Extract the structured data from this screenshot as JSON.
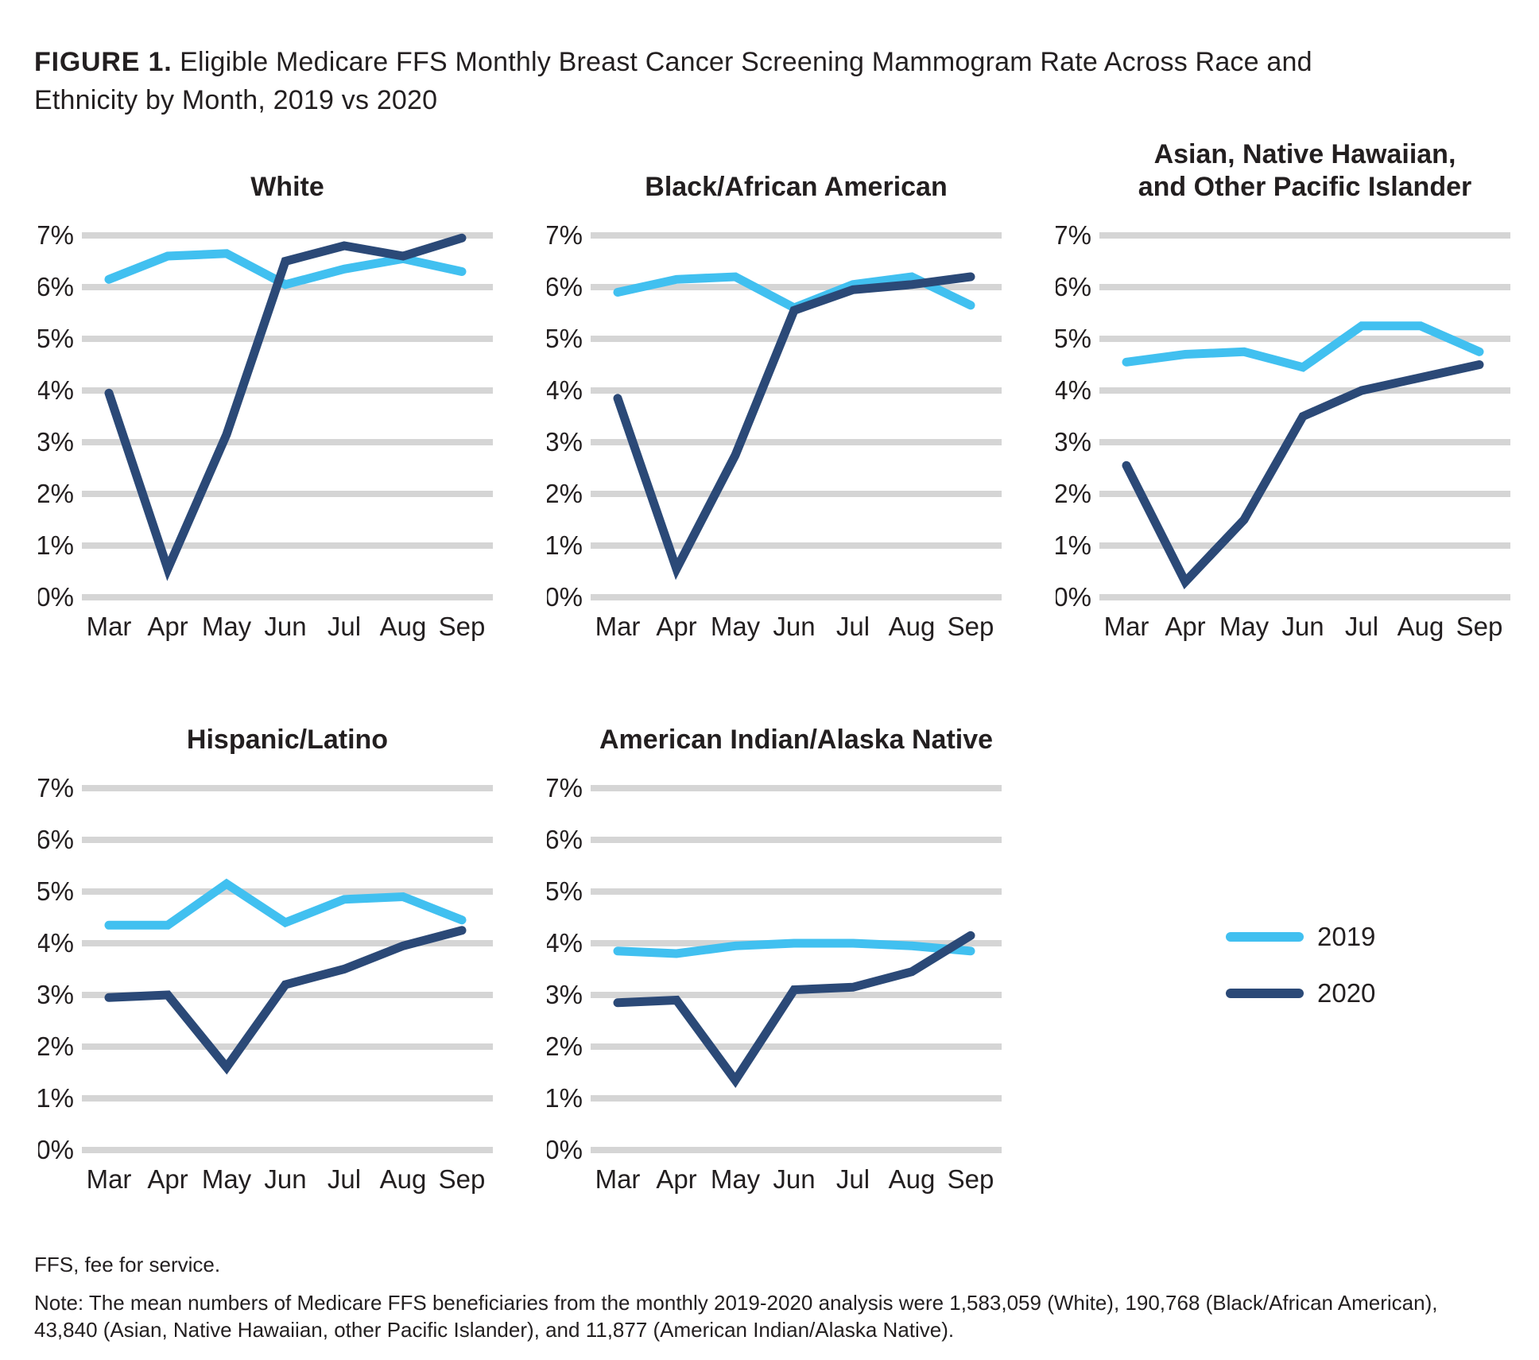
{
  "title": {
    "label": "FIGURE 1.",
    "text": "Eligible Medicare FFS Monthly Breast Cancer Screening Mammogram Rate Across Race and Ethnicity by Month, 2019 vs 2020"
  },
  "colors": {
    "series_2019": "#41C0F0",
    "series_2020": "#2B4977",
    "gridline": "#D5D5D5",
    "text": "#231F20"
  },
  "legend": {
    "position": "right-middle",
    "items": [
      {
        "label": "2019",
        "color": "#41C0F0"
      },
      {
        "label": "2020",
        "color": "#2B4977"
      }
    ]
  },
  "chart_data": [
    {
      "type": "line",
      "title": "White",
      "title_lines": [
        "White"
      ],
      "categories": [
        "Mar",
        "Apr",
        "May",
        "Jun",
        "Jul",
        "Aug",
        "Sep"
      ],
      "ylim": [
        0,
        7
      ],
      "y_tick_labels": [
        "0%",
        "1%",
        "2%",
        "3%",
        "4%",
        "5%",
        "6%",
        "7%"
      ],
      "grid": true,
      "series": [
        {
          "name": "2019",
          "color": "#41C0F0",
          "values": [
            6.15,
            6.6,
            6.65,
            6.05,
            6.35,
            6.55,
            6.3
          ]
        },
        {
          "name": "2020",
          "color": "#2B4977",
          "values": [
            3.95,
            0.55,
            3.15,
            6.5,
            6.8,
            6.6,
            6.95
          ]
        }
      ]
    },
    {
      "type": "line",
      "title": "Black/African American",
      "title_lines": [
        "Black/African American"
      ],
      "categories": [
        "Mar",
        "Apr",
        "May",
        "Jun",
        "Jul",
        "Aug",
        "Sep"
      ],
      "ylim": [
        0,
        7
      ],
      "y_tick_labels": [
        "0%",
        "1%",
        "2%",
        "3%",
        "4%",
        "5%",
        "6%",
        "7%"
      ],
      "grid": true,
      "series": [
        {
          "name": "2019",
          "color": "#41C0F0",
          "values": [
            5.9,
            6.15,
            6.2,
            5.6,
            6.05,
            6.2,
            5.65
          ]
        },
        {
          "name": "2020",
          "color": "#2B4977",
          "values": [
            3.85,
            0.55,
            2.75,
            5.55,
            5.95,
            6.05,
            6.2
          ]
        }
      ]
    },
    {
      "type": "line",
      "title": "Asian, Native Hawaiian, and Other Pacific Islander",
      "title_lines": [
        "Asian, Native Hawaiian,",
        "and Other Pacific Islander"
      ],
      "categories": [
        "Mar",
        "Apr",
        "May",
        "Jun",
        "Jul",
        "Aug",
        "Sep"
      ],
      "ylim": [
        0,
        7
      ],
      "y_tick_labels": [
        "0%",
        "1%",
        "2%",
        "3%",
        "4%",
        "5%",
        "6%",
        "7%"
      ],
      "grid": true,
      "series": [
        {
          "name": "2019",
          "color": "#41C0F0",
          "values": [
            4.55,
            4.7,
            4.75,
            4.45,
            5.25,
            5.25,
            4.75
          ]
        },
        {
          "name": "2020",
          "color": "#2B4977",
          "values": [
            2.55,
            0.3,
            1.5,
            3.5,
            4.0,
            4.25,
            4.5
          ]
        }
      ]
    },
    {
      "type": "line",
      "title": "Hispanic/Latino",
      "title_lines": [
        "Hispanic/Latino"
      ],
      "categories": [
        "Mar",
        "Apr",
        "May",
        "Jun",
        "Jul",
        "Aug",
        "Sep"
      ],
      "ylim": [
        0,
        7
      ],
      "y_tick_labels": [
        "0%",
        "1%",
        "2%",
        "3%",
        "4%",
        "5%",
        "6%",
        "7%"
      ],
      "grid": true,
      "series": [
        {
          "name": "2019",
          "color": "#41C0F0",
          "values": [
            4.35,
            4.35,
            5.15,
            4.4,
            4.85,
            4.9,
            4.45
          ]
        },
        {
          "name": "2020",
          "color": "#2B4977",
          "values": [
            2.95,
            3.0,
            1.6,
            3.2,
            3.5,
            3.95,
            4.25
          ]
        }
      ]
    },
    {
      "type": "line",
      "title": "American Indian/Alaska Native",
      "title_lines": [
        "American Indian/Alaska Native"
      ],
      "categories": [
        "Mar",
        "Apr",
        "May",
        "Jun",
        "Jul",
        "Aug",
        "Sep"
      ],
      "ylim": [
        0,
        7
      ],
      "y_tick_labels": [
        "0%",
        "1%",
        "2%",
        "3%",
        "4%",
        "5%",
        "6%",
        "7%"
      ],
      "grid": true,
      "series": [
        {
          "name": "2019",
          "color": "#41C0F0",
          "values": [
            3.85,
            3.8,
            3.95,
            4.0,
            4.0,
            3.95,
            3.85
          ]
        },
        {
          "name": "2020",
          "color": "#2B4977",
          "values": [
            2.85,
            2.9,
            1.35,
            3.1,
            3.15,
            3.45,
            4.15
          ]
        }
      ]
    }
  ],
  "footnotes": {
    "abbreviation": "FFS, fee for service.",
    "note": "Note: The mean numbers of Medicare FFS beneficiaries from the monthly 2019-2020 analysis were 1,583,059 (White), 190,768 (Black/African American), 43,840 (Asian, Native Hawaiian, other Pacific Islander), and 11,877 (American Indian/Alaska Native)."
  }
}
